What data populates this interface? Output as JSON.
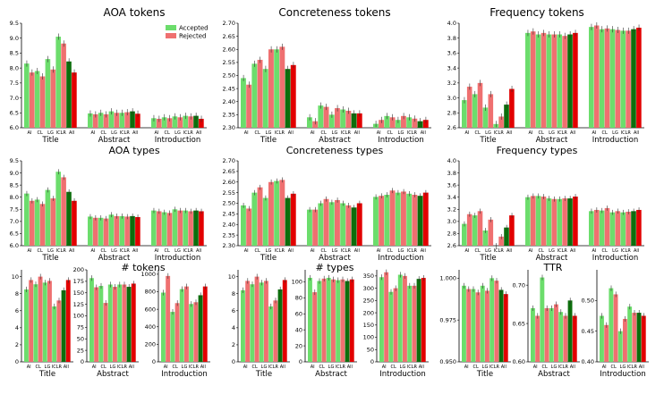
{
  "colors": {
    "accepted_light": "#6cdd6c",
    "rejected_light": "#ef7070",
    "accepted_all": "#0c6e0c",
    "rejected_all": "#e20000",
    "errorbar": "#333333"
  },
  "legend": {
    "accepted": "Accepted",
    "rejected": "Rejected"
  },
  "chart_data": [
    {
      "id": "aoa-tokens",
      "type": "bar",
      "title": "AOA tokens",
      "legend": true,
      "groups": [
        "Title",
        "Abstract",
        "Introduction"
      ],
      "categories": [
        "AI",
        "CL",
        "LG",
        "ICLR",
        "All"
      ],
      "ylim": [
        6.0,
        9.5
      ],
      "yticks": [
        "6.0",
        "6.5",
        "7.0",
        "7.5",
        "8.0",
        "8.5",
        "9.0",
        "9.5"
      ],
      "series": [
        {
          "name": "Accepted",
          "values": [
            [
              8.15,
              7.9,
              8.3,
              9.05,
              8.22
            ],
            [
              6.48,
              6.5,
              6.55,
              6.5,
              6.55
            ],
            [
              6.32,
              6.35,
              6.38,
              6.4,
              6.4
            ]
          ]
        },
        {
          "name": "Rejected",
          "values": [
            [
              7.85,
              7.72,
              7.95,
              8.82,
              7.85
            ],
            [
              6.45,
              6.45,
              6.5,
              6.52,
              6.47
            ],
            [
              6.3,
              6.32,
              6.35,
              6.38,
              6.3
            ]
          ]
        }
      ]
    },
    {
      "id": "concreteness-tokens",
      "type": "bar",
      "title": "Concreteness tokens",
      "groups": [
        "Title",
        "Abstract",
        "Introduction"
      ],
      "categories": [
        "AI",
        "CL",
        "LG",
        "ICLR",
        "All"
      ],
      "ylim": [
        2.3,
        2.7
      ],
      "yticks": [
        "2.30",
        "2.35",
        "2.40",
        "2.45",
        "2.50",
        "2.55",
        "2.60",
        "2.65",
        "2.70"
      ],
      "series": [
        {
          "name": "Accepted",
          "values": [
            [
              2.49,
              2.545,
              2.525,
              2.6,
              2.525
            ],
            [
              2.34,
              2.385,
              2.35,
              2.37,
              2.355
            ],
            [
              2.315,
              2.345,
              2.33,
              2.34,
              2.325
            ]
          ]
        },
        {
          "name": "Rejected",
          "values": [
            [
              2.465,
              2.56,
              2.6,
              2.61,
              2.54
            ],
            [
              2.325,
              2.38,
              2.375,
              2.365,
              2.355
            ],
            [
              2.33,
              2.34,
              2.345,
              2.335,
              2.33
            ]
          ]
        }
      ]
    },
    {
      "id": "frequency-tokens",
      "type": "bar",
      "title": "Frequency tokens",
      "groups": [
        "Title",
        "Abstract",
        "Introduction"
      ],
      "categories": [
        "AI",
        "CL",
        "LG",
        "ICLR",
        "All"
      ],
      "ylim": [
        2.6,
        4.0
      ],
      "yticks": [
        "2.6",
        "2.8",
        "3.0",
        "3.2",
        "3.4",
        "3.6",
        "3.8",
        "4.0"
      ],
      "series": [
        {
          "name": "Accepted",
          "values": [
            [
              2.97,
              3.05,
              2.87,
              2.65,
              2.91
            ],
            [
              3.87,
              3.85,
              3.85,
              3.85,
              3.85
            ],
            [
              3.95,
              3.92,
              3.92,
              3.9,
              3.92
            ]
          ]
        },
        {
          "name": "Rejected",
          "values": [
            [
              3.15,
              3.2,
              3.05,
              2.75,
              3.12
            ],
            [
              3.89,
              3.87,
              3.85,
              3.83,
              3.87
            ],
            [
              3.97,
              3.93,
              3.91,
              3.9,
              3.94
            ]
          ]
        }
      ]
    },
    {
      "id": "aoa-types",
      "type": "bar",
      "title": "AOA types",
      "groups": [
        "Title",
        "Abstract",
        "Introduction"
      ],
      "categories": [
        "AI",
        "CL",
        "LG",
        "ICLR",
        "All"
      ],
      "ylim": [
        6.0,
        9.5
      ],
      "yticks": [
        "6.0",
        "6.5",
        "7.0",
        "7.5",
        "8.0",
        "8.5",
        "9.0",
        "9.5"
      ],
      "series": [
        {
          "name": "Accepted",
          "values": [
            [
              8.15,
              7.9,
              8.3,
              9.05,
              8.22
            ],
            [
              7.2,
              7.15,
              7.28,
              7.22,
              7.22
            ],
            [
              7.45,
              7.38,
              7.5,
              7.45,
              7.45
            ]
          ]
        },
        {
          "name": "Rejected",
          "values": [
            [
              7.85,
              7.72,
              7.95,
              8.82,
              7.85
            ],
            [
              7.15,
              7.12,
              7.22,
              7.2,
              7.18
            ],
            [
              7.42,
              7.35,
              7.45,
              7.42,
              7.42
            ]
          ]
        }
      ]
    },
    {
      "id": "concreteness-types",
      "type": "bar",
      "title": "Concreteness types",
      "groups": [
        "Title",
        "Abstract",
        "Introduction"
      ],
      "categories": [
        "AI",
        "CL",
        "LG",
        "ICLR",
        "All"
      ],
      "ylim": [
        2.3,
        2.7
      ],
      "yticks": [
        "2.30",
        "2.35",
        "2.40",
        "2.45",
        "2.50",
        "2.55",
        "2.60",
        "2.65",
        "2.70"
      ],
      "series": [
        {
          "name": "Accepted",
          "values": [
            [
              2.49,
              2.55,
              2.525,
              2.605,
              2.525
            ],
            [
              2.47,
              2.5,
              2.505,
              2.5,
              2.48
            ],
            [
              2.53,
              2.54,
              2.55,
              2.545,
              2.535
            ]
          ]
        },
        {
          "name": "Rejected",
          "values": [
            [
              2.475,
              2.575,
              2.6,
              2.61,
              2.545
            ],
            [
              2.47,
              2.52,
              2.515,
              2.49,
              2.5
            ],
            [
              2.535,
              2.56,
              2.555,
              2.54,
              2.55
            ]
          ]
        }
      ]
    },
    {
      "id": "frequency-types",
      "type": "bar",
      "title": "Frequency types",
      "groups": [
        "Title",
        "Abstract",
        "Introduction"
      ],
      "categories": [
        "AI",
        "CL",
        "LG",
        "ICLR",
        "All"
      ],
      "ylim": [
        2.6,
        4.0
      ],
      "yticks": [
        "2.6",
        "2.8",
        "3.0",
        "3.2",
        "3.4",
        "3.6",
        "3.8",
        "4.0"
      ],
      "series": [
        {
          "name": "Accepted",
          "values": [
            [
              2.96,
              3.1,
              2.85,
              2.6,
              2.9
            ],
            [
              3.4,
              3.42,
              3.38,
              3.37,
              3.38
            ],
            [
              3.17,
              3.18,
              3.15,
              3.15,
              3.17
            ]
          ]
        },
        {
          "name": "Rejected",
          "values": [
            [
              3.12,
              3.17,
              3.03,
              2.75,
              3.1
            ],
            [
              3.42,
              3.41,
              3.37,
              3.38,
              3.41
            ],
            [
              3.19,
              3.22,
              3.17,
              3.16,
              3.19
            ]
          ]
        }
      ]
    },
    {
      "id": "tokens-title",
      "type": "bar",
      "title": "",
      "groups": [
        "Title"
      ],
      "categories": [
        "AI",
        "CL",
        "LG",
        "ICLR",
        "All"
      ],
      "ylim": [
        0,
        10.8
      ],
      "yticks": [
        "0",
        "2",
        "4",
        "6",
        "8",
        "10"
      ],
      "series": [
        {
          "name": "Accepted",
          "values": [
            [
              8.5,
              9.1,
              9.3,
              6.5,
              8.4
            ]
          ]
        },
        {
          "name": "Rejected",
          "values": [
            [
              9.6,
              10.0,
              9.5,
              7.2,
              9.6
            ]
          ]
        }
      ]
    },
    {
      "id": "tokens-abstract",
      "type": "bar",
      "title": "# tokens",
      "groups": [
        "Abstract"
      ],
      "categories": [
        "AI",
        "CL",
        "LG",
        "ICLR",
        "All"
      ],
      "ylim": [
        0,
        200
      ],
      "yticks": [
        "0",
        "25",
        "50",
        "75",
        "100",
        "125",
        "150",
        "175",
        "200"
      ],
      "series": [
        {
          "name": "Accepted",
          "values": [
            [
              182,
              165,
              168,
              168,
              163
            ]
          ]
        },
        {
          "name": "Rejected",
          "values": [
            [
              162,
              128,
              163,
              168,
              170
            ]
          ]
        }
      ]
    },
    {
      "id": "tokens-intro",
      "type": "bar",
      "title": "",
      "groups": [
        "Introduction"
      ],
      "categories": [
        "AI",
        "CL",
        "LG",
        "ICLR",
        "All"
      ],
      "ylim": [
        0,
        1050
      ],
      "yticks": [
        "0",
        "200",
        "400",
        "600",
        "800",
        "1000"
      ],
      "series": [
        {
          "name": "Accepted",
          "values": [
            [
              790,
              570,
              830,
              660,
              760
            ]
          ]
        },
        {
          "name": "Rejected",
          "values": [
            [
              980,
              670,
              860,
              680,
              860
            ]
          ]
        }
      ]
    },
    {
      "id": "types-title",
      "type": "bar",
      "title": "",
      "groups": [
        "Title"
      ],
      "categories": [
        "AI",
        "CL",
        "LG",
        "ICLR",
        "All"
      ],
      "ylim": [
        0,
        10.8
      ],
      "yticks": [
        "0",
        "2",
        "4",
        "6",
        "8",
        "10"
      ],
      "series": [
        {
          "name": "Accepted",
          "values": [
            [
              8.4,
              9.1,
              9.3,
              6.5,
              8.5
            ]
          ]
        },
        {
          "name": "Rejected",
          "values": [
            [
              9.5,
              10.0,
              9.5,
              7.2,
              9.6
            ]
          ]
        }
      ]
    },
    {
      "id": "types-abstract",
      "type": "bar",
      "title": "# types",
      "groups": [
        "Abstract"
      ],
      "categories": [
        "AI",
        "CL",
        "LG",
        "ICLR",
        "All"
      ],
      "ylim": [
        0,
        115
      ],
      "yticks": [
        "0",
        "20",
        "40",
        "60",
        "80",
        "100"
      ],
      "series": [
        {
          "name": "Accepted",
          "values": [
            [
              105,
              101,
              105,
              102,
              101
            ]
          ]
        },
        {
          "name": "Rejected",
          "values": [
            [
              87,
              104,
              103,
              103,
              103
            ]
          ]
        }
      ]
    },
    {
      "id": "types-intro",
      "type": "bar",
      "title": "",
      "groups": [
        "Introduction"
      ],
      "categories": [
        "AI",
        "CL",
        "LG",
        "ICLR",
        "All"
      ],
      "ylim": [
        0,
        375
      ],
      "yticks": [
        "0",
        "50",
        "100",
        "150",
        "200",
        "250",
        "300",
        "350"
      ],
      "series": [
        {
          "name": "Accepted",
          "values": [
            [
              345,
              285,
              355,
              310,
              338
            ]
          ]
        },
        {
          "name": "Rejected",
          "values": [
            [
              365,
              300,
              350,
              310,
              342
            ]
          ]
        }
      ]
    },
    {
      "id": "ttr-title",
      "type": "bar",
      "title": "",
      "groups": [
        "Title"
      ],
      "categories": [
        "AI",
        "CL",
        "LG",
        "ICLR",
        "All"
      ],
      "ylim": [
        0.95,
        1.005
      ],
      "yticks": [
        "0.950",
        "0.975",
        "1.000"
      ],
      "series": [
        {
          "name": "Accepted",
          "values": [
            [
              0.9955,
              0.9935,
              0.9955,
              1.0,
              0.993
            ]
          ]
        },
        {
          "name": "Rejected",
          "values": [
            [
              0.9935,
              0.9915,
              0.9925,
              0.9985,
              0.9905
            ]
          ]
        }
      ]
    },
    {
      "id": "ttr-abstract",
      "type": "bar",
      "title": "TTR",
      "groups": [
        "Abstract"
      ],
      "categories": [
        "AI",
        "CL",
        "LG",
        "ICLR",
        "All"
      ],
      "ylim": [
        0.6,
        0.72
      ],
      "yticks": [
        "0.60",
        "0.65",
        "0.70"
      ],
      "series": [
        {
          "name": "Accepted",
          "values": [
            [
              0.67,
              0.71,
              0.67,
              0.665,
              0.68
            ]
          ]
        },
        {
          "name": "Rejected",
          "values": [
            [
              0.66,
              0.67,
              0.675,
              0.66,
              0.66
            ]
          ]
        }
      ]
    },
    {
      "id": "ttr-intro",
      "type": "bar",
      "title": "",
      "groups": [
        "Introduction"
      ],
      "categories": [
        "AI",
        "CL",
        "LG",
        "ICLR",
        "All"
      ],
      "ylim": [
        0.4,
        0.55
      ],
      "yticks": [
        "0.40",
        "0.45",
        "0.50"
      ],
      "series": [
        {
          "name": "Accepted",
          "values": [
            [
              0.475,
              0.52,
              0.45,
              0.49,
              0.48
            ]
          ]
        },
        {
          "name": "Rejected",
          "values": [
            [
              0.46,
              0.51,
              0.47,
              0.48,
              0.475
            ]
          ]
        }
      ]
    }
  ]
}
